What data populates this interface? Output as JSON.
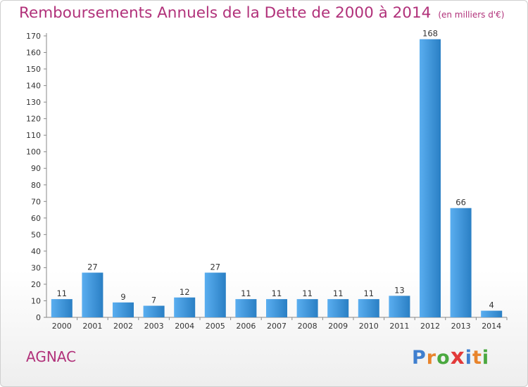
{
  "title": "Remboursements Annuels de la Dette de 2000 à 2014",
  "unit": "(en milliers d'€)",
  "location": "AGNAC",
  "brand": {
    "name": "Proxiti",
    "letter_colors": [
      "#3f7fcf",
      "#e8842c",
      "#4aa83f",
      "#e23a3a",
      "#3f7fcf",
      "#e8842c",
      "#4aa83f"
    ]
  },
  "colors": {
    "title": "#b1317a",
    "bar_light": "#5aaef0",
    "bar_dark": "#2a7fc4"
  },
  "chart_data": {
    "type": "bar",
    "categories": [
      "2000",
      "2001",
      "2002",
      "2003",
      "2004",
      "2005",
      "2006",
      "2007",
      "2008",
      "2009",
      "2010",
      "2011",
      "2012",
      "2013",
      "2014"
    ],
    "values": [
      11,
      27,
      9,
      7,
      12,
      27,
      11,
      11,
      11,
      11,
      11,
      13,
      168,
      66,
      4
    ],
    "ylim": [
      0,
      170
    ],
    "yticks": [
      0,
      10,
      20,
      30,
      40,
      50,
      60,
      70,
      80,
      90,
      100,
      110,
      120,
      130,
      140,
      150,
      160,
      170
    ],
    "grid": false,
    "legend": "none",
    "data_labels": true
  }
}
